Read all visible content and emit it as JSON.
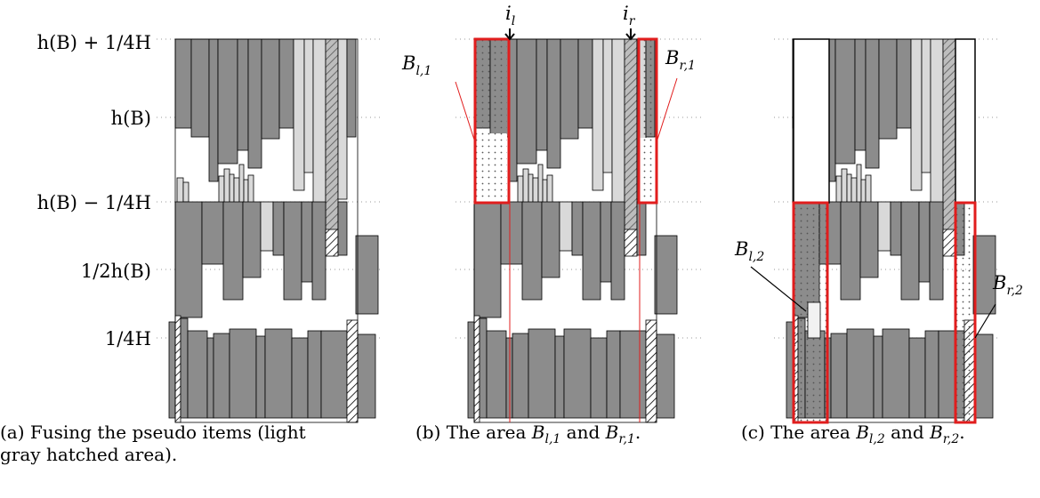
{
  "y_axis_labels": [
    "h(B) + 1/4H",
    "h(B)",
    "h(B) − 1/4H",
    "1/2h(B)",
    "1/4H"
  ],
  "panel_b_labels": {
    "left_marker": "i",
    "left_marker_sub": "l",
    "right_marker": "i",
    "right_marker_sub": "r",
    "left_area": "B",
    "left_area_sub": "l,1",
    "right_area": "B",
    "right_area_sub": "r,1"
  },
  "panel_c_labels": {
    "left_area": "B",
    "left_area_sub": "l,2",
    "right_area": "B",
    "right_area_sub": "r,2"
  },
  "captions": {
    "a_line1": "(a)  Fusing  the  pseudo  items  (light",
    "a_line2": "gray hatched area).",
    "b_text": "(b) The area ",
    "b_sym1": "B",
    "b_sub1": "l,1",
    "b_and": " and ",
    "b_sym2": "B",
    "b_sub2": "r,1",
    "b_end": ".",
    "c_text": "(c) The area ",
    "c_sym1": "B",
    "c_sub1": "l,2",
    "c_and": " and ",
    "c_sym2": "B",
    "c_sub2": "r,2",
    "c_end": "."
  },
  "colors": {
    "dark_item": "#8c8c8c",
    "light_item": "#d9d9d9",
    "highlight": "#e11d1d",
    "guide": "#999999"
  }
}
